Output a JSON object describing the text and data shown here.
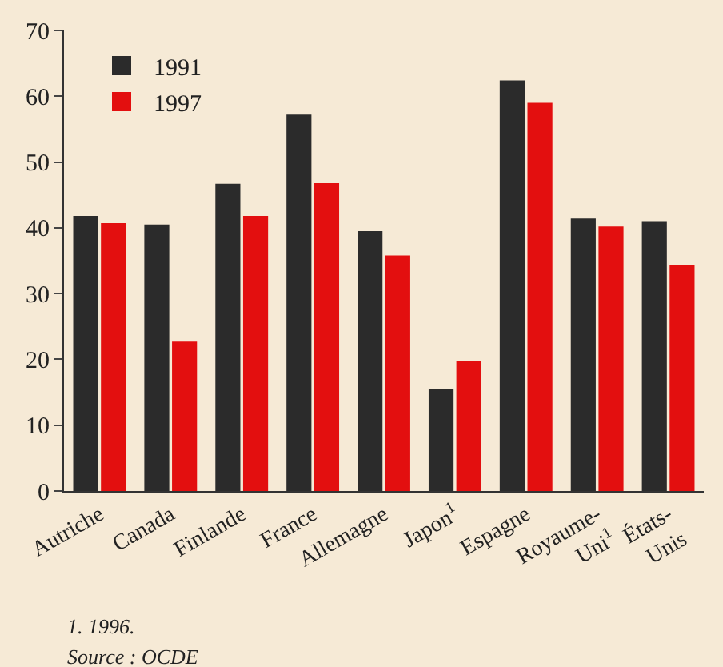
{
  "chart_data": {
    "type": "bar",
    "categories": [
      "Autriche",
      "Canada",
      "Finlande",
      "France",
      "Allemagne",
      "Japon$^{1}$",
      "Espagne",
      "Royaume-Uni$^{1}$",
      "États-Unis"
    ],
    "series": [
      {
        "name": "1991",
        "color": "#2b2b2b",
        "values": [
          41.8,
          40.5,
          46.7,
          57.2,
          39.5,
          15.5,
          62.4,
          41.4,
          41.0
        ]
      },
      {
        "name": "1997",
        "color": "#e30f0f",
        "values": [
          40.7,
          22.7,
          41.8,
          46.8,
          35.8,
          19.8,
          59.0,
          40.2,
          34.4
        ]
      }
    ],
    "ylim": [
      0,
      70
    ],
    "yticks": [
      0,
      10,
      20,
      30,
      40,
      50,
      60,
      70
    ],
    "grid": false,
    "legend": "top left",
    "annotations": [
      "1. 1996.",
      "Source : OCDE"
    ]
  }
}
